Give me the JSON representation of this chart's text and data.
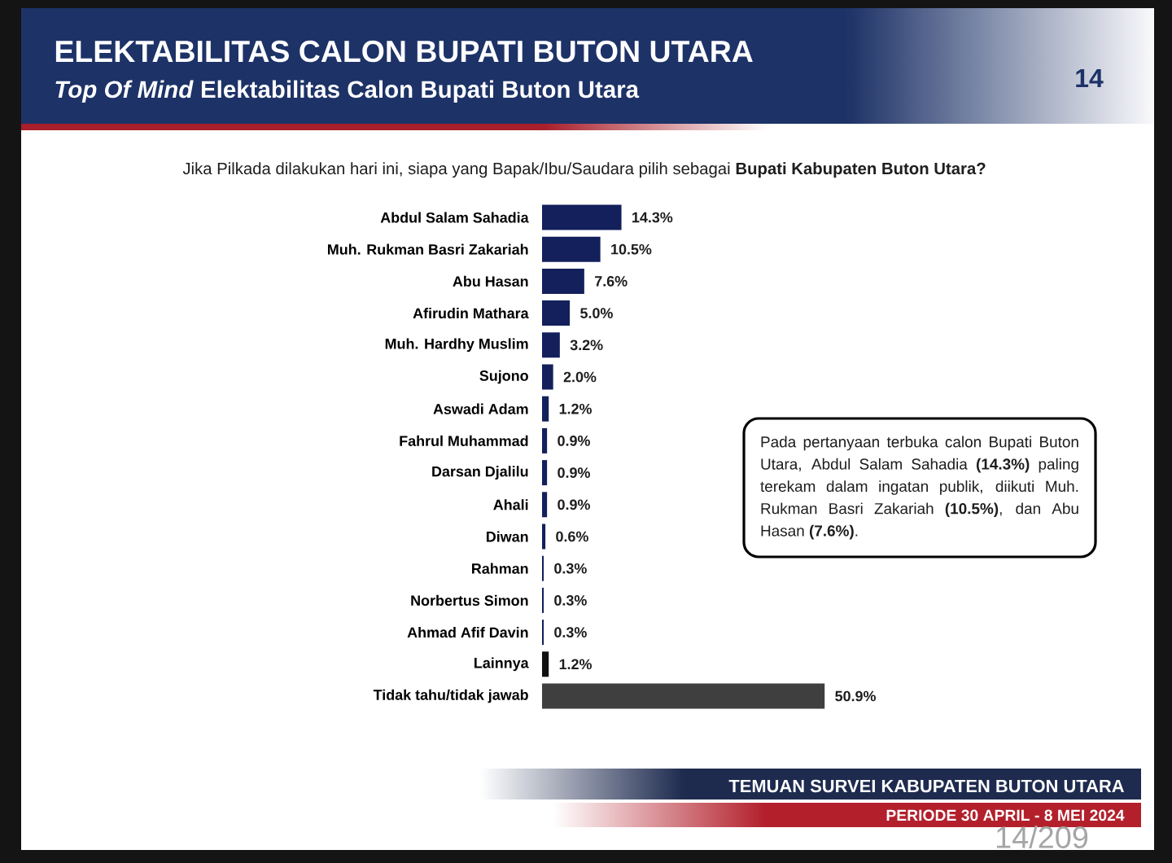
{
  "chart_data": {
    "type": "bar",
    "orientation": "horizontal",
    "title": "ELEKTABILITAS CALON BUPATI BUTON UTARA",
    "subtitle": "*Top Of Mind* Elektabilitas Calon Bupati Buton Utara",
    "categories": [
      "Abdul Salam Sahadia",
      "Muh. Rukman Basri Zakariah",
      "Abu Hasan",
      "Afirudin Mathara",
      "Muh. Hardhy Muslim",
      "Sujono",
      "Aswadi Adam",
      "Fahrul Muhammad",
      "Darsan Djalilu",
      "Ahali",
      "Diwan",
      "Rahman",
      "Norbertus Simon",
      "Ahmad Afif Davin",
      "Lainnya",
      "Tidak tahu/tidak jawab"
    ],
    "values": [
      14.3,
      10.5,
      7.6,
      5.0,
      3.2,
      2.0,
      1.2,
      0.9,
      0.9,
      0.9,
      0.6,
      0.3,
      0.3,
      0.3,
      1.2,
      50.9
    ],
    "value_labels": [
      "14.3%",
      "10.5%",
      "7.6%",
      "5.0%",
      "3.2%",
      "2.0%",
      "1.2%",
      "0.9%",
      "0.9%",
      "0.9%",
      "0.6%",
      "0.3%",
      "0.3%",
      "0.3%",
      "1.2%",
      "50.9%"
    ],
    "colors": [
      "#13205c",
      "#13205c",
      "#13205c",
      "#13205c",
      "#13205c",
      "#13205c",
      "#13205c",
      "#13205c",
      "#13205c",
      "#13205c",
      "#13205c",
      "#13205c",
      "#13205c",
      "#13205c",
      "#111111",
      "#3f3f3f"
    ],
    "annotations": [
      "Jika Pilkada dilakukan hari ini, siapa yang Bapak/Ibu/Saudara pilih sebagai **Bupati Kabupaten Buton Utara?**",
      "Pada pertanyaan terbuka calon Bupati Buton Utara, Abdul Salam Sahadia **(14.3%)** paling terekam dalam ingatan publik, diikuti Muh. Rukman Basri Zakariah **(10.5%)**, dan Abu Hasan **(7.6%)**.",
      "TEMUAN SURVEI KABUPATEN BUTON UTARA",
      "PERIODE 30 APRIL - 8 MEI 2024",
      "14",
      "14/209"
    ]
  }
}
